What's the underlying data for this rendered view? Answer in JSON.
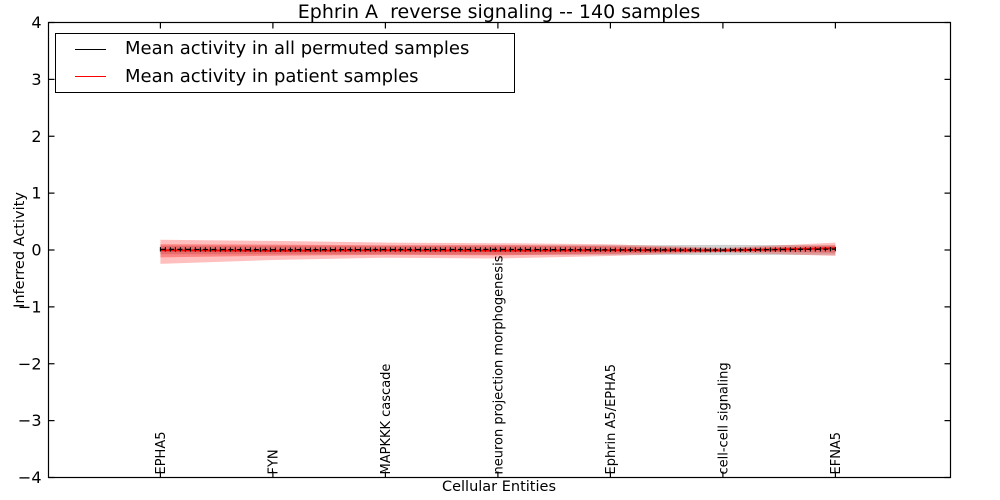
{
  "figure": {
    "background": "#ffffff",
    "frame_color": "#000000"
  },
  "legend": {
    "items": [
      {
        "label": "Mean activity in all permuted samples",
        "color": "#000000"
      },
      {
        "label": "Mean activity in patient samples",
        "color": "#ff0000"
      }
    ]
  },
  "chart_data": {
    "type": "line",
    "title": "Ephrin A  reverse signaling -- 140 samples",
    "xlabel": "Cellular Entities",
    "ylabel": "Inferred Activity",
    "ylim": [
      -4,
      4
    ],
    "ytick_labels": [
      "4",
      "3",
      "2",
      "1",
      "0",
      "−1",
      "−2",
      "−3",
      "−4"
    ],
    "ytick_values": [
      4,
      3,
      2,
      1,
      0,
      -1,
      -2,
      -3,
      -4
    ],
    "grid": false,
    "legend_position": "upper left",
    "tick_direction": "in",
    "categories": [
      "EPHA5",
      "FYN",
      "MAPKKK cascade",
      "neuron projection morphogenesis",
      "Ephrin A5/EPHA5",
      "cell-cell signaling",
      "EFNA5"
    ],
    "series": [
      {
        "name": "Mean activity in all permuted samples",
        "color": "#000000",
        "style": "dashed-with-tick-markers",
        "values": [
          0.012,
          0.005,
          0.008,
          0.01,
          0.004,
          0.0,
          0.015
        ]
      },
      {
        "name": "Mean activity in patient samples",
        "color": "#ff0000",
        "style": "solid",
        "values": [
          -0.005,
          -0.012,
          -0.006,
          -0.01,
          -0.004,
          -0.008,
          0.03
        ]
      }
    ],
    "bands": [
      {
        "name": "permuted-samples-band",
        "color": "rgba(120,120,120,0.35)",
        "upper": [
          0.075,
          0.075,
          0.078,
          0.08,
          0.082,
          0.09,
          0.082
        ],
        "lower": [
          -0.075,
          -0.075,
          -0.078,
          -0.08,
          -0.082,
          -0.09,
          -0.082
        ]
      },
      {
        "name": "patient-band-outer",
        "color": "rgba(255,0,0,0.25)",
        "upper": [
          0.18,
          0.16,
          0.13,
          0.12,
          0.1,
          0.035,
          0.13
        ],
        "lower": [
          -0.245,
          -0.175,
          -0.135,
          -0.15,
          -0.105,
          -0.04,
          -0.105
        ]
      },
      {
        "name": "patient-band-inner",
        "color": "rgba(255,0,0,0.3)",
        "upper": [
          0.1,
          0.095,
          0.08,
          0.085,
          0.065,
          0.02,
          0.08
        ],
        "lower": [
          -0.13,
          -0.1,
          -0.085,
          -0.095,
          -0.065,
          -0.025,
          -0.045
        ]
      }
    ],
    "n_marker_points": 136
  }
}
